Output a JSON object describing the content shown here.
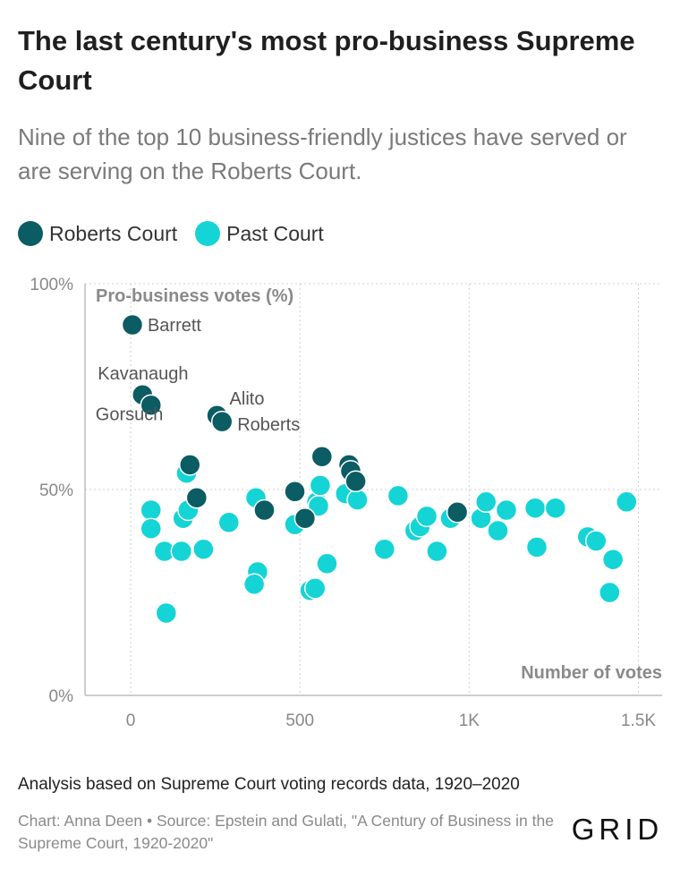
{
  "header": {
    "title": "The last century's most pro-business Supreme Court",
    "subtitle": "Nine of the top 10 business-friendly justices have served or are serving on the Roberts Court."
  },
  "legend": [
    {
      "label": "Roberts Court",
      "color": "#0b5c63"
    },
    {
      "label": "Past Court",
      "color": "#14d4d6"
    }
  ],
  "footer": {
    "note": "Analysis based on Supreme Court voting records data, 1920–2020",
    "source": "Chart: Anna Deen • Source: Epstein and Gulati, \"A Century of Business in the Supreme Court, 1920-2020\"",
    "logo": "GRID"
  },
  "chart_data": {
    "type": "scatter",
    "xlabel": "Number of votes",
    "ylabel": "Pro-business votes (%)",
    "xlim": [
      -135,
      1570
    ],
    "ylim": [
      0,
      100
    ],
    "x_ticks": [
      {
        "value": 0,
        "label": "0"
      },
      {
        "value": 500,
        "label": "500"
      },
      {
        "value": 1000,
        "label": "1K"
      },
      {
        "value": 1500,
        "label": "1.5K"
      }
    ],
    "y_ticks": [
      {
        "value": 0,
        "label": "0%"
      },
      {
        "value": 50,
        "label": "50%"
      },
      {
        "value": 100,
        "label": "100%"
      }
    ],
    "grid": true,
    "series": [
      {
        "name": "Past Court",
        "color": "#14d4d6",
        "points": [
          {
            "x": 60,
            "y": 45
          },
          {
            "x": 60,
            "y": 40.5
          },
          {
            "x": 100,
            "y": 35
          },
          {
            "x": 105,
            "y": 20
          },
          {
            "x": 150,
            "y": 35
          },
          {
            "x": 155,
            "y": 43
          },
          {
            "x": 165,
            "y": 54
          },
          {
            "x": 170,
            "y": 45
          },
          {
            "x": 215,
            "y": 35.5
          },
          {
            "x": 290,
            "y": 42
          },
          {
            "x": 370,
            "y": 48
          },
          {
            "x": 375,
            "y": 30
          },
          {
            "x": 365,
            "y": 27
          },
          {
            "x": 485,
            "y": 41.5
          },
          {
            "x": 530,
            "y": 25.5
          },
          {
            "x": 545,
            "y": 26
          },
          {
            "x": 550,
            "y": 47
          },
          {
            "x": 555,
            "y": 46
          },
          {
            "x": 560,
            "y": 51
          },
          {
            "x": 580,
            "y": 32
          },
          {
            "x": 635,
            "y": 49
          },
          {
            "x": 670,
            "y": 47.5
          },
          {
            "x": 750,
            "y": 35.5
          },
          {
            "x": 790,
            "y": 48.5
          },
          {
            "x": 840,
            "y": 40
          },
          {
            "x": 855,
            "y": 41
          },
          {
            "x": 875,
            "y": 43.5
          },
          {
            "x": 905,
            "y": 35
          },
          {
            "x": 945,
            "y": 43
          },
          {
            "x": 1035,
            "y": 43
          },
          {
            "x": 1050,
            "y": 47
          },
          {
            "x": 1085,
            "y": 40
          },
          {
            "x": 1110,
            "y": 45
          },
          {
            "x": 1195,
            "y": 45.5
          },
          {
            "x": 1200,
            "y": 36
          },
          {
            "x": 1255,
            "y": 45.5
          },
          {
            "x": 1350,
            "y": 38.5
          },
          {
            "x": 1375,
            "y": 37.5
          },
          {
            "x": 1415,
            "y": 25
          },
          {
            "x": 1425,
            "y": 33
          },
          {
            "x": 1465,
            "y": 47
          }
        ]
      },
      {
        "name": "Roberts Court",
        "color": "#0b5c63",
        "points": [
          {
            "x": 5,
            "y": 90,
            "label": "Barrett"
          },
          {
            "x": 35,
            "y": 73,
            "label": "Kavanaugh"
          },
          {
            "x": 60,
            "y": 70.5,
            "label": "Gorsuch"
          },
          {
            "x": 255,
            "y": 68,
            "label": "Alito"
          },
          {
            "x": 270,
            "y": 66.5,
            "label": "Roberts"
          },
          {
            "x": 175,
            "y": 56
          },
          {
            "x": 195,
            "y": 48
          },
          {
            "x": 395,
            "y": 45
          },
          {
            "x": 485,
            "y": 49.5
          },
          {
            "x": 515,
            "y": 43
          },
          {
            "x": 565,
            "y": 58
          },
          {
            "x": 645,
            "y": 56
          },
          {
            "x": 650,
            "y": 54.5
          },
          {
            "x": 665,
            "y": 52
          },
          {
            "x": 965,
            "y": 44.5
          }
        ]
      }
    ]
  }
}
